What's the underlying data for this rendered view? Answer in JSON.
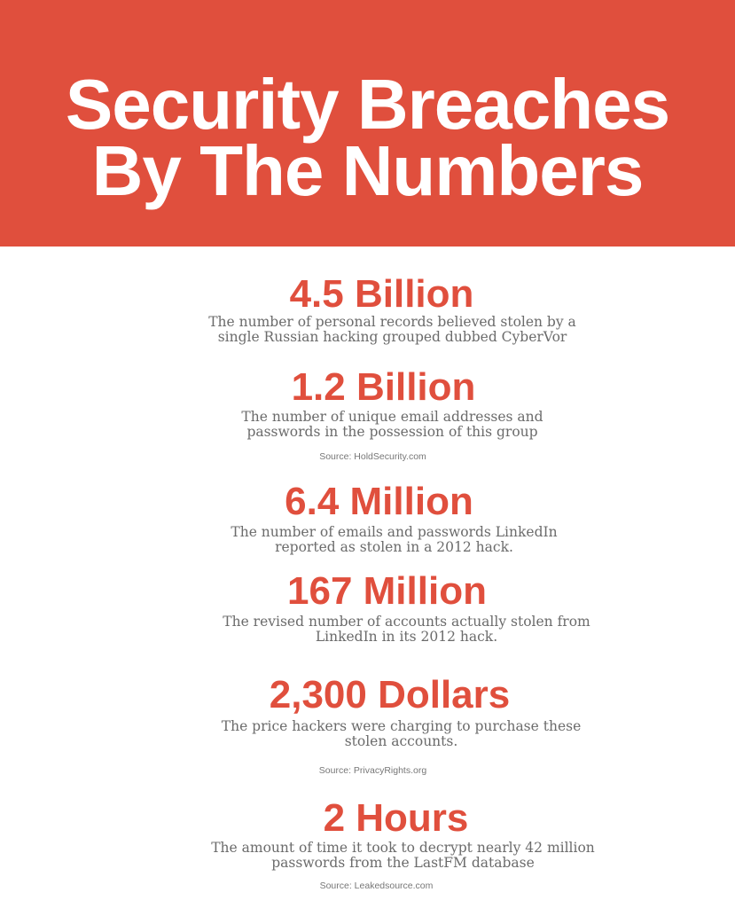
{
  "header": {
    "title_line1": "Security Breaches",
    "title_line2": "By The Numbers"
  },
  "stats": [
    {
      "value": "4.5 Billion",
      "desc_line1": "The number of personal records believed stolen by a",
      "desc_line2": "single Russian hacking grouped dubbed CyberVor"
    },
    {
      "value": "1.2 Billion",
      "desc_line1": "The number of unique email addresses and",
      "desc_line2": "passwords in the possession of this group",
      "source": "Source: HoldSecurity.com"
    },
    {
      "value": "6.4 Million",
      "desc_line1": "The number of emails and passwords LinkedIn",
      "desc_line2": "reported as stolen in a 2012 hack."
    },
    {
      "value": "167 Million",
      "desc_line1": "The revised number of accounts actually stolen from",
      "desc_line2": "LinkedIn in its 2012 hack."
    },
    {
      "value": "2,300 Dollars",
      "desc_line1": "The price hackers were charging to purchase these",
      "desc_line2": "stolen accounts.",
      "source": "Source: PrivacyRights.org"
    },
    {
      "value": "2 Hours",
      "desc_line1": "The amount of time it took to decrypt nearly 42 million",
      "desc_line2": "passwords from the LastFM database",
      "source": "Source: Leakedsource.com"
    }
  ],
  "colors": {
    "accent": "#e04f3d",
    "text": "#6b6b6b"
  }
}
